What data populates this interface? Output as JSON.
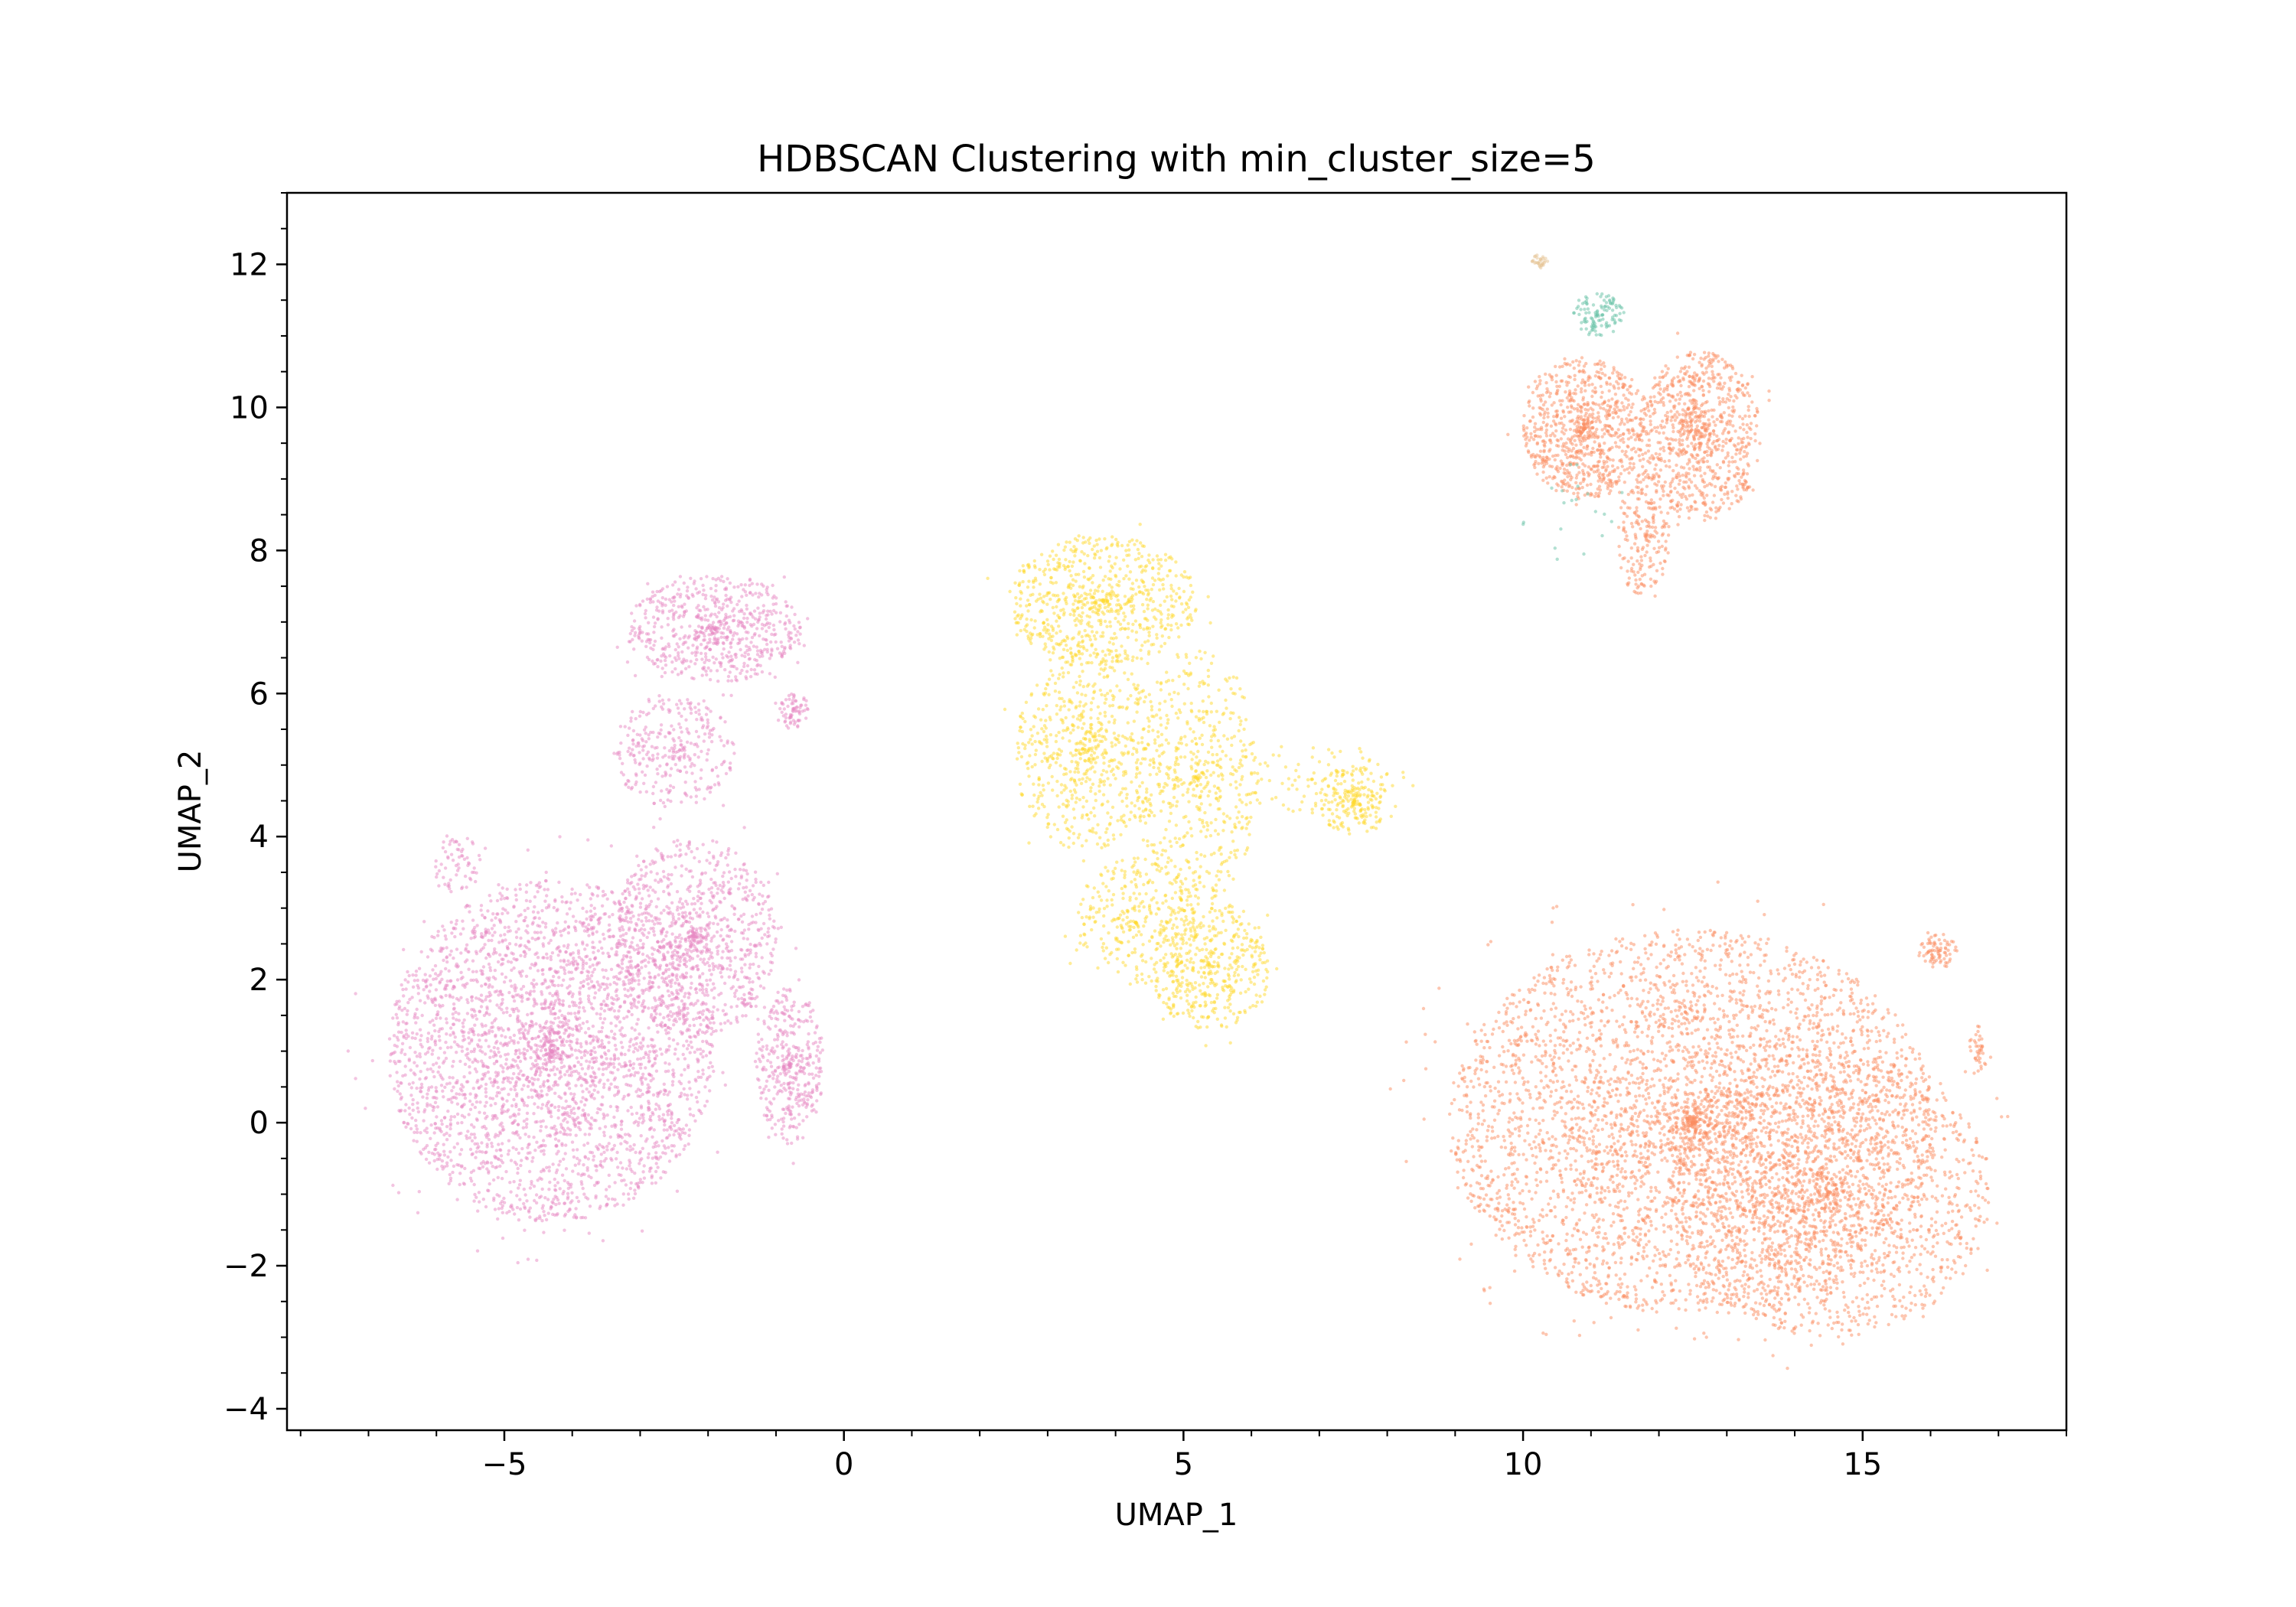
{
  "chart_data": {
    "type": "scatter",
    "title": "HDBSCAN Clustering with min_cluster_size=5",
    "xlabel": "UMAP_1",
    "ylabel": "UMAP_2",
    "xlim": [
      -8.2,
      18.0
    ],
    "ylim": [
      -4.3,
      13.0
    ],
    "xticks": [
      -5,
      0,
      5,
      10,
      15
    ],
    "xtick_labels": [
      "−5",
      "0",
      "5",
      "10",
      "15"
    ],
    "yticks": [
      -4,
      -2,
      0,
      2,
      4,
      6,
      8,
      10,
      12
    ],
    "ytick_labels": [
      "−4",
      "−2",
      "0",
      "2",
      "4",
      "6",
      "8",
      "10",
      "12"
    ],
    "x_minor_step": 1,
    "y_minor_step": 0.5,
    "grid": false,
    "legend": "none",
    "point_alpha": 0.5,
    "clusters": [
      {
        "color": "#e78ac3",
        "regions": [
          {
            "cx": -4.3,
            "cy": 1.0,
            "rx": 2.4,
            "ry": 2.4,
            "n": 3200
          },
          {
            "cx": -2.2,
            "cy": 2.6,
            "rx": 1.2,
            "ry": 1.4,
            "n": 900
          },
          {
            "cx": -1.9,
            "cy": 6.9,
            "rx": 1.3,
            "ry": 0.75,
            "n": 650
          },
          {
            "cx": -2.5,
            "cy": 5.2,
            "rx": 0.9,
            "ry": 0.8,
            "n": 300
          },
          {
            "cx": -0.8,
            "cy": 0.8,
            "rx": 0.5,
            "ry": 1.1,
            "n": 380
          },
          {
            "cx": -0.75,
            "cy": 5.75,
            "rx": 0.25,
            "ry": 0.25,
            "n": 70
          },
          {
            "cx": -5.7,
            "cy": 3.6,
            "rx": 0.35,
            "ry": 0.45,
            "n": 60
          }
        ]
      },
      {
        "color": "#ffd92f",
        "regions": [
          {
            "cx": 3.8,
            "cy": 7.3,
            "rx": 1.4,
            "ry": 0.9,
            "n": 700
          },
          {
            "cx": 3.6,
            "cy": 5.2,
            "rx": 1.1,
            "ry": 1.4,
            "n": 650
          },
          {
            "cx": 5.2,
            "cy": 4.8,
            "rx": 0.9,
            "ry": 1.8,
            "n": 500
          },
          {
            "cx": 5.4,
            "cy": 2.2,
            "rx": 0.9,
            "ry": 0.9,
            "n": 450
          },
          {
            "cx": 4.3,
            "cy": 2.8,
            "rx": 0.9,
            "ry": 0.9,
            "n": 300
          },
          {
            "cx": 7.5,
            "cy": 4.5,
            "rx": 0.5,
            "ry": 0.5,
            "n": 200
          },
          {
            "cx": 6.9,
            "cy": 4.8,
            "rx": 1.4,
            "ry": 0.5,
            "n": 90
          }
        ]
      },
      {
        "color": "#fc8d62",
        "regions": [
          {
            "cx": 12.5,
            "cy": 0.0,
            "rx": 3.6,
            "ry": 2.7,
            "n": 4200
          },
          {
            "cx": 14.5,
            "cy": -1.0,
            "rx": 2.4,
            "ry": 2.0,
            "n": 1600
          },
          {
            "cx": 16.1,
            "cy": 2.4,
            "rx": 0.3,
            "ry": 0.25,
            "n": 80
          },
          {
            "cx": 16.7,
            "cy": 1.0,
            "rx": 0.15,
            "ry": 0.35,
            "n": 40
          },
          {
            "cx": 10.9,
            "cy": 9.7,
            "rx": 0.9,
            "ry": 1.0,
            "n": 800
          },
          {
            "cx": 12.6,
            "cy": 9.6,
            "rx": 0.9,
            "ry": 1.2,
            "n": 850
          },
          {
            "cx": 11.8,
            "cy": 8.2,
            "rx": 0.4,
            "ry": 0.9,
            "n": 200
          }
        ]
      },
      {
        "color": "#66c2a5",
        "regions": [
          {
            "cx": 11.1,
            "cy": 11.3,
            "rx": 0.4,
            "ry": 0.3,
            "n": 110
          },
          {
            "cx": 10.8,
            "cy": 8.6,
            "rx": 0.9,
            "ry": 0.8,
            "n": 20
          }
        ]
      },
      {
        "color": "#e5c494",
        "regions": [
          {
            "cx": 10.25,
            "cy": 12.05,
            "rx": 0.12,
            "ry": 0.1,
            "n": 30
          }
        ]
      }
    ]
  }
}
